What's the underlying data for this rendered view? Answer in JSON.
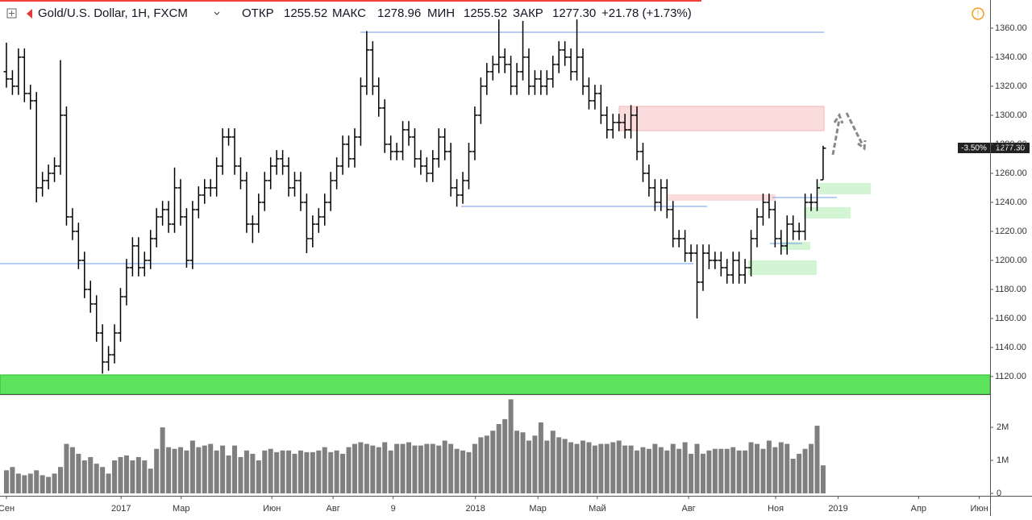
{
  "header": {
    "symbol": "Gold/U.S. Dollar, 1H, FXCM",
    "open_label": "ОТКР",
    "high_label": "МАКС",
    "low_label": "МИН",
    "close_label": "ЗАКР",
    "change": "+21.78 (+1.73%)"
  },
  "chart_data": {
    "type": "ohlc",
    "color": "#000000",
    "volume_color": "#7f7f7f",
    "close_label": "1277.30",
    "last_price_label": "1277.30",
    "change_label": "-3.50%",
    "x": [
      0,
      1,
      2,
      3,
      4,
      5,
      6,
      7,
      8,
      9,
      10,
      11,
      12,
      13,
      14,
      15,
      16,
      17,
      18,
      19,
      20,
      21,
      22,
      23,
      24,
      25,
      26,
      27,
      28,
      29,
      30,
      31,
      32,
      33,
      34,
      35,
      36,
      37,
      38,
      39,
      40,
      41,
      42,
      43,
      44,
      45,
      46,
      47,
      48,
      49,
      50,
      51,
      52,
      53,
      54,
      55,
      56,
      57,
      58,
      59,
      60,
      61,
      62,
      63,
      64,
      65,
      66,
      67,
      68,
      69,
      70,
      71,
      72,
      73,
      74,
      75,
      76,
      77,
      78,
      79,
      80,
      81,
      82,
      83,
      84,
      85,
      86,
      87,
      88,
      89,
      90,
      91,
      92,
      93,
      94,
      95,
      96,
      97,
      98,
      99,
      100,
      101,
      102,
      103,
      104,
      105,
      106,
      107,
      108,
      109,
      110,
      111,
      112,
      113,
      114,
      115,
      116,
      117,
      118,
      119,
      120,
      121,
      122,
      123,
      124,
      125,
      126,
      127,
      128,
      129,
      130,
      131,
      132,
      133,
      134,
      135,
      136
    ],
    "open": [
      1330,
      1325,
      1320,
      1340,
      1315,
      1310,
      1250,
      1255,
      1260,
      1265,
      1300,
      1230,
      1220,
      1200,
      1180,
      1170,
      1150,
      1130,
      1135,
      1150,
      1175,
      1195,
      1210,
      1195,
      1200,
      1215,
      1230,
      1235,
      1225,
      1250,
      1230,
      1200,
      1235,
      1245,
      1250,
      1250,
      1265,
      1285,
      1285,
      1265,
      1255,
      1225,
      1225,
      1240,
      1255,
      1265,
      1270,
      1265,
      1250,
      1255,
      1240,
      1215,
      1225,
      1230,
      1240,
      1255,
      1265,
      1280,
      1270,
      1285,
      1320,
      1345,
      1320,
      1305,
      1280,
      1275,
      1275,
      1290,
      1285,
      1270,
      1265,
      1260,
      1270,
      1285,
      1275,
      1250,
      1245,
      1255,
      1275,
      1300,
      1320,
      1330,
      1335,
      1340,
      1335,
      1320,
      1330,
      1340,
      1320,
      1325,
      1320,
      1325,
      1335,
      1345,
      1340,
      1330,
      1340,
      1320,
      1310,
      1315,
      1300,
      1290,
      1295,
      1295,
      1290,
      1300,
      1275,
      1260,
      1250,
      1240,
      1250,
      1235,
      1215,
      1215,
      1205,
      1205,
      1185,
      1205,
      1200,
      1200,
      1195,
      1190,
      1200,
      1190,
      1195,
      1215,
      1230,
      1240,
      1235,
      1215,
      1210,
      1225,
      1220,
      1220,
      1240,
      1240,
      1255.52
    ],
    "high": [
      1350,
      1331,
      1346,
      1346,
      1321,
      1316,
      1261,
      1266,
      1271,
      1338,
      1306,
      1236,
      1226,
      1206,
      1186,
      1176,
      1156,
      1141,
      1156,
      1181,
      1201,
      1216,
      1216,
      1206,
      1221,
      1236,
      1241,
      1241,
      1264,
      1256,
      1236,
      1241,
      1251,
      1256,
      1256,
      1271,
      1291,
      1291,
      1291,
      1271,
      1261,
      1231,
      1246,
      1261,
      1271,
      1276,
      1276,
      1271,
      1261,
      1261,
      1246,
      1231,
      1236,
      1246,
      1261,
      1271,
      1286,
      1286,
      1291,
      1326,
      1358,
      1351,
      1326,
      1311,
      1286,
      1281,
      1296,
      1296,
      1291,
      1276,
      1271,
      1276,
      1291,
      1291,
      1281,
      1256,
      1261,
      1281,
      1306,
      1326,
      1336,
      1341,
      1366,
      1346,
      1341,
      1336,
      1365,
      1346,
      1331,
      1331,
      1331,
      1341,
      1351,
      1351,
      1346,
      1366,
      1346,
      1326,
      1321,
      1321,
      1306,
      1301,
      1301,
      1301,
      1307,
      1306,
      1281,
      1266,
      1256,
      1256,
      1256,
      1241,
      1221,
      1221,
      1211,
      1211,
      1211,
      1211,
      1206,
      1206,
      1201,
      1206,
      1206,
      1201,
      1221,
      1236,
      1246,
      1246,
      1241,
      1221,
      1231,
      1231,
      1226,
      1246,
      1246,
      1256,
      1278.96
    ],
    "low": [
      1319,
      1314,
      1314,
      1309,
      1304,
      1240,
      1244,
      1249,
      1254,
      1259,
      1224,
      1214,
      1194,
      1174,
      1164,
      1144,
      1122,
      1124,
      1129,
      1144,
      1169,
      1189,
      1189,
      1189,
      1194,
      1209,
      1224,
      1219,
      1219,
      1224,
      1195,
      1194,
      1229,
      1239,
      1244,
      1244,
      1259,
      1279,
      1259,
      1249,
      1219,
      1212,
      1219,
      1234,
      1249,
      1259,
      1259,
      1244,
      1244,
      1234,
      1205,
      1209,
      1219,
      1224,
      1234,
      1249,
      1259,
      1264,
      1264,
      1279,
      1314,
      1314,
      1299,
      1274,
      1269,
      1269,
      1269,
      1279,
      1264,
      1259,
      1254,
      1254,
      1264,
      1269,
      1244,
      1237,
      1239,
      1249,
      1269,
      1294,
      1314,
      1324,
      1329,
      1329,
      1314,
      1314,
      1324,
      1314,
      1314,
      1314,
      1314,
      1319,
      1329,
      1334,
      1324,
      1324,
      1314,
      1304,
      1304,
      1294,
      1284,
      1284,
      1289,
      1284,
      1284,
      1269,
      1254,
      1244,
      1234,
      1234,
      1229,
      1209,
      1209,
      1199,
      1199,
      1160,
      1179,
      1194,
      1194,
      1189,
      1184,
      1184,
      1184,
      1184,
      1189,
      1209,
      1224,
      1229,
      1209,
      1204,
      1204,
      1214,
      1214,
      1214,
      1234,
      1234,
      1255.52
    ],
    "close": [
      1325,
      1320,
      1340,
      1315,
      1310,
      1250,
      1255,
      1260,
      1265,
      1300,
      1230,
      1220,
      1200,
      1180,
      1170,
      1150,
      1130,
      1135,
      1150,
      1175,
      1195,
      1210,
      1195,
      1200,
      1215,
      1230,
      1235,
      1225,
      1250,
      1230,
      1200,
      1235,
      1245,
      1250,
      1250,
      1265,
      1285,
      1285,
      1265,
      1255,
      1225,
      1225,
      1240,
      1255,
      1265,
      1270,
      1265,
      1250,
      1255,
      1240,
      1215,
      1225,
      1230,
      1240,
      1255,
      1265,
      1280,
      1270,
      1285,
      1320,
      1345,
      1320,
      1305,
      1280,
      1275,
      1275,
      1290,
      1285,
      1270,
      1265,
      1260,
      1270,
      1285,
      1275,
      1250,
      1245,
      1255,
      1275,
      1300,
      1320,
      1330,
      1335,
      1340,
      1335,
      1320,
      1330,
      1340,
      1320,
      1325,
      1320,
      1325,
      1335,
      1345,
      1340,
      1330,
      1340,
      1320,
      1310,
      1315,
      1300,
      1290,
      1295,
      1295,
      1290,
      1300,
      1275,
      1260,
      1250,
      1240,
      1250,
      1235,
      1215,
      1215,
      1205,
      1205,
      1185,
      1205,
      1200,
      1200,
      1195,
      1190,
      1200,
      1190,
      1195,
      1215,
      1230,
      1240,
      1235,
      1215,
      1210,
      1225,
      1220,
      1220,
      1240,
      1240,
      1250,
      1277.3
    ],
    "volume": [
      700000,
      800000,
      600000,
      550000,
      600000,
      700000,
      550000,
      500000,
      600000,
      800000,
      1500000,
      1400000,
      1200000,
      1000000,
      1100000,
      900000,
      800000,
      600000,
      1000000,
      1100000,
      1150000,
      1000000,
      1100000,
      1000000,
      750000,
      1350000,
      2000000,
      1400000,
      1350000,
      1400000,
      1300000,
      1600000,
      1400000,
      1450000,
      1500000,
      1300000,
      1450000,
      1150000,
      1450000,
      1100000,
      1300000,
      1200000,
      1000000,
      1300000,
      1350000,
      1250000,
      1300000,
      1300000,
      1200000,
      1300000,
      1250000,
      1250000,
      1300000,
      1400000,
      1250000,
      1300000,
      1200000,
      1400000,
      1500000,
      1550000,
      1500000,
      1450000,
      1400000,
      1550000,
      1300000,
      1500000,
      1500000,
      1550000,
      1450000,
      1450000,
      1500000,
      1500000,
      1450000,
      1600000,
      1500000,
      1350000,
      1300000,
      1250000,
      1500000,
      1700000,
      1750000,
      1900000,
      2100000,
      2250000,
      2850000,
      1900000,
      1850000,
      1600000,
      1750000,
      2150000,
      1600000,
      1900000,
      1700000,
      1650000,
      1550000,
      1500000,
      1600000,
      1550000,
      1450000,
      1500000,
      1500000,
      1550000,
      1600000,
      1450000,
      1450000,
      1300000,
      1400000,
      1350000,
      1500000,
      1400000,
      1300000,
      1500000,
      1350000,
      1550000,
      1200000,
      1500000,
      1200000,
      1300000,
      1350000,
      1350000,
      1350000,
      1400000,
      1300000,
      1300000,
      1550000,
      1500000,
      1350000,
      1600000,
      1400000,
      1550000,
      1500000,
      1050000,
      1200000,
      1350000,
      1500000,
      2050000,
      850000
    ],
    "xlim": [
      -1.07,
      163.8
    ],
    "xticks": [
      {
        "value": 0,
        "label": "Сен"
      },
      {
        "value": 19.1,
        "label": "2017"
      },
      {
        "value": 29.1,
        "label": "Мар"
      },
      {
        "value": 44.2,
        "label": "Июн"
      },
      {
        "value": 54.4,
        "label": "Авг"
      },
      {
        "value": 64.4,
        "label": "9"
      },
      {
        "value": 78.1,
        "label": "2018"
      },
      {
        "value": 88.5,
        "label": "Мар"
      },
      {
        "value": 98.4,
        "label": "Май"
      },
      {
        "value": 113.6,
        "label": "Авг"
      },
      {
        "value": 128.1,
        "label": "Ноя"
      },
      {
        "value": 138.5,
        "label": "2019"
      },
      {
        "value": 151.9,
        "label": "Апр"
      },
      {
        "value": 162,
        "label": "Июн"
      }
    ],
    "ylim": [
      1107.8,
      1379.4
    ],
    "yticks": [
      {
        "value": 1120,
        "label": "1120.00"
      },
      {
        "value": 1140,
        "label": "1140.00"
      },
      {
        "value": 1160,
        "label": "1160.00"
      },
      {
        "value": 1180,
        "label": "1180.00"
      },
      {
        "value": 1200,
        "label": "1200.00"
      },
      {
        "value": 1220,
        "label": "1220.00"
      },
      {
        "value": 1240,
        "label": "1240.00"
      },
      {
        "value": 1260,
        "label": "1260.00"
      },
      {
        "value": 1280,
        "label": "1280.00"
      },
      {
        "value": 1300,
        "label": "1300.00"
      },
      {
        "value": 1320,
        "label": "1320.00"
      },
      {
        "value": 1340,
        "label": "1340.00"
      },
      {
        "value": 1360,
        "label": "1360.00"
      }
    ],
    "y2lim": [
      0,
      2980000
    ],
    "y2ticks": [
      0,
      {
        "value": 1000000,
        "label": "1M"
      },
      {
        "value": 2000000,
        "label": "2M"
      }
    ]
  }
}
